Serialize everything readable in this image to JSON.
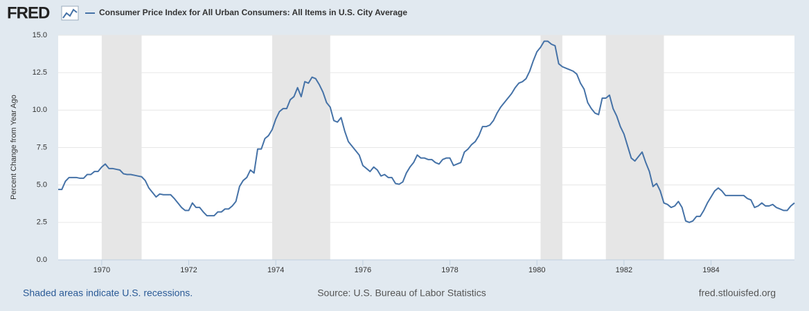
{
  "logo": "FRED",
  "footer": {
    "left": "Shaded areas indicate U.S. recessions.",
    "center": "Source: U.S. Bureau of Labor Statistics",
    "right": "fred.stlouisfed.org"
  },
  "chart_data": {
    "type": "line",
    "y_label": "Percent Change from Year Ago",
    "x": [
      "1969-01",
      "1969-02",
      "1969-03",
      "1969-04",
      "1969-05",
      "1969-06",
      "1969-07",
      "1969-08",
      "1969-09",
      "1969-10",
      "1969-11",
      "1969-12",
      "1970-01",
      "1970-02",
      "1970-03",
      "1970-04",
      "1970-05",
      "1970-06",
      "1970-07",
      "1970-08",
      "1970-09",
      "1970-10",
      "1970-11",
      "1970-12",
      "1971-01",
      "1971-02",
      "1971-03",
      "1971-04",
      "1971-05",
      "1971-06",
      "1971-07",
      "1971-08",
      "1971-09",
      "1971-10",
      "1971-11",
      "1971-12",
      "1972-01",
      "1972-02",
      "1972-03",
      "1972-04",
      "1972-05",
      "1972-06",
      "1972-07",
      "1972-08",
      "1972-09",
      "1972-10",
      "1972-11",
      "1972-12",
      "1973-01",
      "1973-02",
      "1973-03",
      "1973-04",
      "1973-05",
      "1973-06",
      "1973-07",
      "1973-08",
      "1973-09",
      "1973-10",
      "1973-11",
      "1973-12",
      "1974-01",
      "1974-02",
      "1974-03",
      "1974-04",
      "1974-05",
      "1974-06",
      "1974-07",
      "1974-08",
      "1974-09",
      "1974-10",
      "1974-11",
      "1974-12",
      "1975-01",
      "1975-02",
      "1975-03",
      "1975-04",
      "1975-05",
      "1975-06",
      "1975-07",
      "1975-08",
      "1975-09",
      "1975-10",
      "1975-11",
      "1975-12",
      "1976-01",
      "1976-02",
      "1976-03",
      "1976-04",
      "1976-05",
      "1976-06",
      "1976-07",
      "1976-08",
      "1976-09",
      "1976-10",
      "1976-11",
      "1976-12",
      "1977-01",
      "1977-02",
      "1977-03",
      "1977-04",
      "1977-05",
      "1977-06",
      "1977-07",
      "1977-08",
      "1977-09",
      "1977-10",
      "1977-11",
      "1977-12",
      "1978-01",
      "1978-02",
      "1978-03",
      "1978-04",
      "1978-05",
      "1978-06",
      "1978-07",
      "1978-08",
      "1978-09",
      "1978-10",
      "1978-11",
      "1978-12",
      "1979-01",
      "1979-02",
      "1979-03",
      "1979-04",
      "1979-05",
      "1979-06",
      "1979-07",
      "1979-08",
      "1979-09",
      "1979-10",
      "1979-11",
      "1979-12",
      "1980-01",
      "1980-02",
      "1980-03",
      "1980-04",
      "1980-05",
      "1980-06",
      "1980-07",
      "1980-08",
      "1980-09",
      "1980-10",
      "1980-11",
      "1980-12",
      "1981-01",
      "1981-02",
      "1981-03",
      "1981-04",
      "1981-05",
      "1981-06",
      "1981-07",
      "1981-08",
      "1981-09",
      "1981-10",
      "1981-11",
      "1981-12",
      "1982-01",
      "1982-02",
      "1982-03",
      "1982-04",
      "1982-05",
      "1982-06",
      "1982-07",
      "1982-08",
      "1982-09",
      "1982-10",
      "1982-11",
      "1982-12",
      "1983-01",
      "1983-02",
      "1983-03",
      "1983-04",
      "1983-05",
      "1983-06",
      "1983-07",
      "1983-08",
      "1983-09",
      "1983-10",
      "1983-11",
      "1983-12",
      "1984-01",
      "1984-02",
      "1984-03",
      "1984-04",
      "1984-05",
      "1984-06",
      "1984-07",
      "1984-08",
      "1984-09",
      "1984-10",
      "1984-11",
      "1984-12",
      "1985-01",
      "1985-02",
      "1985-03",
      "1985-04",
      "1985-05",
      "1985-06",
      "1985-07",
      "1985-08",
      "1985-09",
      "1985-10",
      "1985-11",
      "1985-12"
    ],
    "series": [
      {
        "name": "Consumer Price Index for All Urban Consumers: All Items in U.S. City Average",
        "color": "#4572a7",
        "values": [
          4.7,
          4.7,
          5.25,
          5.5,
          5.5,
          5.5,
          5.45,
          5.45,
          5.7,
          5.7,
          5.9,
          5.9,
          6.2,
          6.4,
          6.1,
          6.1,
          6.05,
          6.0,
          5.75,
          5.7,
          5.7,
          5.65,
          5.6,
          5.55,
          5.3,
          4.8,
          4.5,
          4.2,
          4.4,
          4.35,
          4.35,
          4.35,
          4.1,
          3.8,
          3.5,
          3.3,
          3.3,
          3.8,
          3.5,
          3.5,
          3.2,
          2.95,
          2.95,
          2.95,
          3.2,
          3.2,
          3.4,
          3.4,
          3.6,
          3.9,
          4.9,
          5.3,
          5.5,
          6.0,
          5.8,
          7.4,
          7.4,
          8.1,
          8.3,
          8.7,
          9.4,
          9.9,
          10.1,
          10.1,
          10.7,
          10.9,
          11.5,
          10.9,
          11.9,
          11.8,
          12.2,
          12.1,
          11.7,
          11.2,
          10.5,
          10.2,
          9.3,
          9.2,
          9.5,
          8.6,
          7.9,
          7.6,
          7.3,
          7.0,
          6.3,
          6.1,
          5.9,
          6.2,
          6.0,
          5.6,
          5.7,
          5.5,
          5.5,
          5.1,
          5.05,
          5.2,
          5.8,
          6.2,
          6.5,
          7.0,
          6.8,
          6.8,
          6.7,
          6.7,
          6.5,
          6.4,
          6.7,
          6.8,
          6.8,
          6.3,
          6.4,
          6.5,
          7.2,
          7.4,
          7.7,
          7.9,
          8.3,
          8.9,
          8.9,
          9.0,
          9.3,
          9.8,
          10.2,
          10.5,
          10.8,
          11.1,
          11.5,
          11.8,
          11.9,
          12.1,
          12.6,
          13.3,
          13.9,
          14.2,
          14.6,
          14.6,
          14.4,
          14.3,
          13.1,
          12.9,
          12.8,
          12.7,
          12.6,
          12.4,
          11.8,
          11.4,
          10.5,
          10.1,
          9.8,
          9.7,
          10.8,
          10.8,
          11.0,
          10.1,
          9.6,
          8.9,
          8.4,
          7.6,
          6.8,
          6.6,
          6.9,
          7.2,
          6.5,
          5.9,
          4.9,
          5.1,
          4.6,
          3.8,
          3.7,
          3.5,
          3.6,
          3.9,
          3.5,
          2.6,
          2.5,
          2.6,
          2.9,
          2.9,
          3.3,
          3.8,
          4.2,
          4.6,
          4.8,
          4.6,
          4.3,
          4.3,
          4.3,
          4.3,
          4.3,
          4.3,
          4.1,
          4.0,
          3.5,
          3.6,
          3.8,
          3.6,
          3.6,
          3.7,
          3.5,
          3.4,
          3.3,
          3.3,
          3.6,
          3.8
        ]
      }
    ],
    "recessions": [
      {
        "start": "1970-01",
        "end": "1970-11"
      },
      {
        "start": "1973-12",
        "end": "1975-03"
      },
      {
        "start": "1980-02",
        "end": "1980-07"
      },
      {
        "start": "1981-08",
        "end": "1982-11"
      }
    ],
    "recession_color": "#e6e6e6",
    "xlim": [
      "1969-01",
      "1985-12"
    ],
    "xticks": [
      {
        "value": "1970-01",
        "label": "1970"
      },
      {
        "value": "1972-01",
        "label": "1972"
      },
      {
        "value": "1974-01",
        "label": "1974"
      },
      {
        "value": "1976-01",
        "label": "1976"
      },
      {
        "value": "1978-01",
        "label": "1978"
      },
      {
        "value": "1980-01",
        "label": "1980"
      },
      {
        "value": "1982-01",
        "label": "1982"
      },
      {
        "value": "1984-01",
        "label": "1984"
      }
    ],
    "ylim": [
      0,
      15
    ],
    "yticks": [
      {
        "value": 0,
        "label": "0.0"
      },
      {
        "value": 2.5,
        "label": "2.5"
      },
      {
        "value": 5,
        "label": "5.0"
      },
      {
        "value": 7.5,
        "label": "7.5"
      },
      {
        "value": 10,
        "label": "10.0"
      },
      {
        "value": 12.5,
        "label": "12.5"
      },
      {
        "value": 15,
        "label": "15.0"
      }
    ],
    "grid": true
  }
}
